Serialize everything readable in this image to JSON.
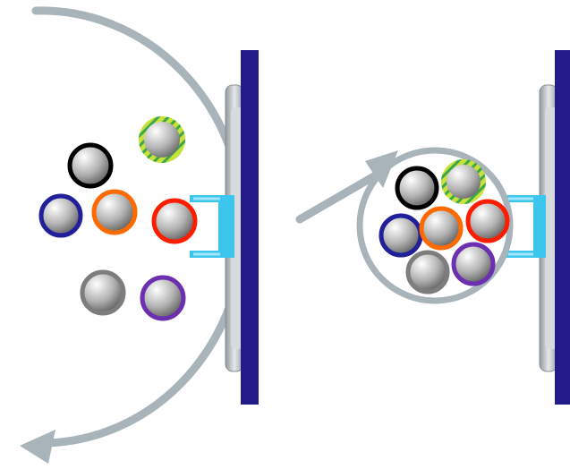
{
  "colors": {
    "background": "#ffffff",
    "arrow": "#a9b4ba",
    "plate": "#231b8a",
    "bracket": "#3cc6ee",
    "mount": "#b9bec2"
  },
  "panels": [
    {
      "id": "dispersed",
      "particles": [
        {
          "id": "black",
          "ring": "#000000"
        },
        {
          "id": "green-striped",
          "ring": "#c9e23a",
          "pattern": "striped"
        },
        {
          "id": "navy",
          "ring": "#21209a"
        },
        {
          "id": "orange",
          "ring": "#ff6a00"
        },
        {
          "id": "red",
          "ring": "#ff1d00"
        },
        {
          "id": "gray",
          "ring": "#7d7d7d"
        },
        {
          "id": "purple",
          "ring": "#6b2fb0"
        }
      ]
    },
    {
      "id": "clustered",
      "particles": [
        {
          "id": "black",
          "ring": "#000000"
        },
        {
          "id": "green-striped",
          "ring": "#c9e23a",
          "pattern": "striped"
        },
        {
          "id": "navy",
          "ring": "#21209a"
        },
        {
          "id": "orange",
          "ring": "#ff6a00"
        },
        {
          "id": "red",
          "ring": "#ff1d00"
        },
        {
          "id": "gray",
          "ring": "#7d7d7d"
        },
        {
          "id": "purple",
          "ring": "#6b2fb0"
        }
      ]
    }
  ]
}
